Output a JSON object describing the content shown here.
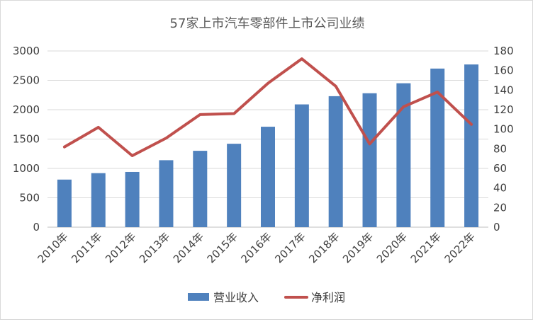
{
  "chart_data": {
    "type": "bar",
    "title": "57家上市汽车零部件上市公司业绩",
    "categories": [
      "2010年",
      "2011年",
      "2012年",
      "2013年",
      "2014年",
      "2015年",
      "2016年",
      "2017年",
      "2018年",
      "2019年",
      "2020年",
      "2021年",
      "2022年"
    ],
    "series": [
      {
        "name": "营业收入",
        "type": "bar",
        "axis": "left",
        "color": "#4F81BD",
        "values": [
          810,
          920,
          940,
          1140,
          1300,
          1420,
          1710,
          2090,
          2230,
          2280,
          2450,
          2700,
          2770
        ]
      },
      {
        "name": "净利润",
        "type": "line",
        "axis": "right",
        "color": "#C0504D",
        "values": [
          82,
          102,
          73,
          91,
          115,
          116,
          147,
          172,
          144,
          85,
          123,
          138,
          105
        ]
      }
    ],
    "ylim_left": [
      0,
      3000
    ],
    "yticks_left": [
      "0",
      "500",
      "1000",
      "1500",
      "2000",
      "2500",
      "3000"
    ],
    "ylim_right": [
      0,
      180
    ],
    "yticks_right": [
      "0",
      "20",
      "40",
      "60",
      "80",
      "100",
      "120",
      "140",
      "160",
      "180"
    ],
    "grid": "horizontal",
    "legend_position": "bottom"
  }
}
